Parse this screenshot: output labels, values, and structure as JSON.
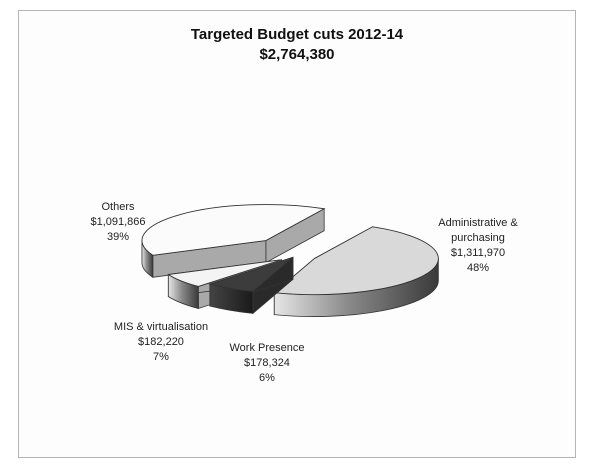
{
  "chart_data": {
    "type": "pie",
    "title": "Targeted Budget cuts 2012-14",
    "subtitle": "$2,764,380",
    "slices": [
      {
        "name": "Administrative & purchasing",
        "value": 1311970,
        "value_label": "$1,311,970",
        "percent": 48,
        "percent_label": "48%",
        "color": "#d9d9d9"
      },
      {
        "name": "Work Presence",
        "value": 178324,
        "value_label": "$178,324",
        "percent": 6,
        "percent_label": "6%",
        "color": "#3c3c3c"
      },
      {
        "name": "MIS & virtualisation",
        "value": 182220,
        "value_label": "$182,220",
        "percent": 7,
        "percent_label": "7%",
        "color": "#f4f4f4"
      },
      {
        "name": "Others",
        "value": 1091866,
        "value_label": "$1,091,866",
        "percent": 39,
        "percent_label": "39%",
        "color": "#fbfbfb"
      }
    ],
    "style": "3d-exploded-pie",
    "legend": "none"
  }
}
